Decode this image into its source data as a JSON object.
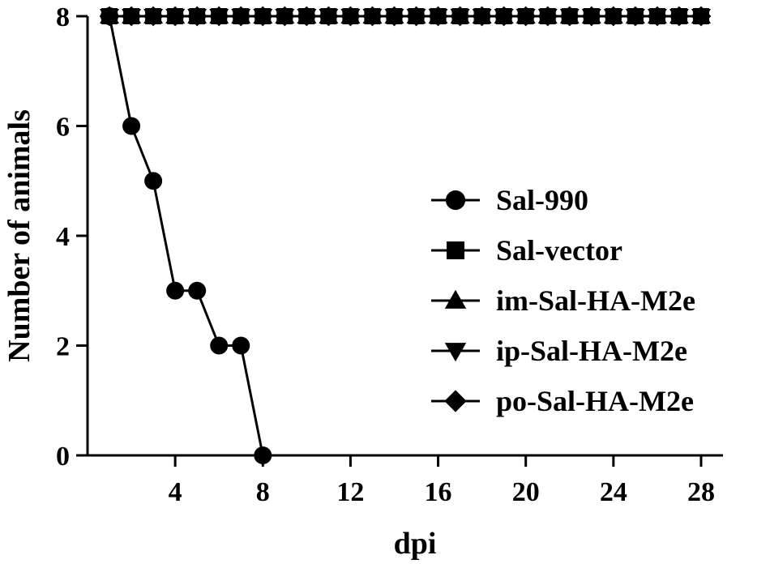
{
  "chart_data": {
    "type": "line",
    "xlabel": "dpi",
    "ylabel": "Number of animals",
    "xlim": [
      0,
      29
    ],
    "ylim": [
      0,
      8
    ],
    "x_ticks": [
      4,
      8,
      12,
      16,
      20,
      24,
      28
    ],
    "y_ticks": [
      0,
      2,
      4,
      6,
      8
    ],
    "grid": false,
    "legend_position": "right",
    "series": [
      {
        "name": "Sal-990",
        "marker": "circle",
        "x": [
          1,
          2,
          3,
          4,
          5,
          6,
          7,
          8
        ],
        "y": [
          8,
          6,
          5,
          3,
          3,
          2,
          2,
          0
        ]
      },
      {
        "name": "Sal-vector",
        "marker": "square",
        "x": [
          1,
          2,
          3,
          4,
          5,
          6,
          7,
          8,
          9,
          10,
          11,
          12,
          13,
          14,
          15,
          16,
          17,
          18,
          19,
          20,
          21,
          22,
          23,
          24,
          25,
          26,
          27,
          28
        ],
        "y": [
          8,
          8,
          8,
          8,
          8,
          8,
          8,
          8,
          8,
          8,
          8,
          8,
          8,
          8,
          8,
          8,
          8,
          8,
          8,
          8,
          8,
          8,
          8,
          8,
          8,
          8,
          8,
          8
        ]
      },
      {
        "name": "im-Sal-HA-M2e",
        "marker": "triangle-up",
        "x": [
          1,
          2,
          3,
          4,
          5,
          6,
          7,
          8,
          9,
          10,
          11,
          12,
          13,
          14,
          15,
          16,
          17,
          18,
          19,
          20,
          21,
          22,
          23,
          24,
          25,
          26,
          27,
          28
        ],
        "y": [
          8,
          8,
          8,
          8,
          8,
          8,
          8,
          8,
          8,
          8,
          8,
          8,
          8,
          8,
          8,
          8,
          8,
          8,
          8,
          8,
          8,
          8,
          8,
          8,
          8,
          8,
          8,
          8
        ]
      },
      {
        "name": "ip-Sal-HA-M2e",
        "marker": "triangle-down",
        "x": [
          1,
          2,
          3,
          4,
          5,
          6,
          7,
          8,
          9,
          10,
          11,
          12,
          13,
          14,
          15,
          16,
          17,
          18,
          19,
          20,
          21,
          22,
          23,
          24,
          25,
          26,
          27,
          28
        ],
        "y": [
          8,
          8,
          8,
          8,
          8,
          8,
          8,
          8,
          8,
          8,
          8,
          8,
          8,
          8,
          8,
          8,
          8,
          8,
          8,
          8,
          8,
          8,
          8,
          8,
          8,
          8,
          8,
          8
        ]
      },
      {
        "name": "po-Sal-HA-M2e",
        "marker": "diamond",
        "x": [
          1,
          2,
          3,
          4,
          5,
          6,
          7,
          8,
          9,
          10,
          11,
          12,
          13,
          14,
          15,
          16,
          17,
          18,
          19,
          20,
          21,
          22,
          23,
          24,
          25,
          26,
          27,
          28
        ],
        "y": [
          8,
          8,
          8,
          8,
          8,
          8,
          8,
          8,
          8,
          8,
          8,
          8,
          8,
          8,
          8,
          8,
          8,
          8,
          8,
          8,
          8,
          8,
          8,
          8,
          8,
          8,
          8,
          8
        ]
      }
    ]
  }
}
